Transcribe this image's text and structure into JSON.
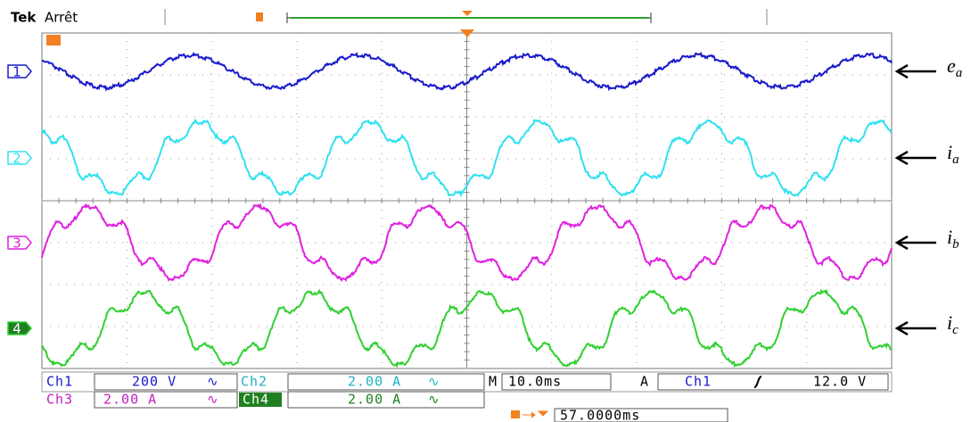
{
  "header": {
    "brand": "Tek",
    "status": "Arrêt"
  },
  "channels": [
    {
      "marker": "1",
      "label": {
        "symbol": "e",
        "sub": "a"
      }
    },
    {
      "marker": "2",
      "label": {
        "symbol": "i",
        "sub": "a"
      }
    },
    {
      "marker": "3",
      "label": {
        "symbol": "i",
        "sub": "b"
      }
    },
    {
      "marker": "4",
      "label": {
        "symbol": "i",
        "sub": "c"
      }
    }
  ],
  "status": {
    "row1": {
      "ch1": "Ch1",
      "ch1_scale": "200 V",
      "ch1_coupling": "∿",
      "ch2": "Ch2",
      "ch2_scale": "2.00 A",
      "ch2_coupling": "∿",
      "timebase_label": "M",
      "timebase": "10.0ms",
      "trigger_label": "A",
      "trigger_source": "Ch1",
      "trigger_level": "12.0 V"
    },
    "row2": {
      "ch3": "Ch3",
      "ch3_scale": "2.00 A",
      "ch3_coupling": "∿",
      "ch4": "Ch4",
      "ch4_scale": "2.00 A",
      "ch4_coupling": "∿"
    },
    "delay": "57.0000ms"
  }
}
